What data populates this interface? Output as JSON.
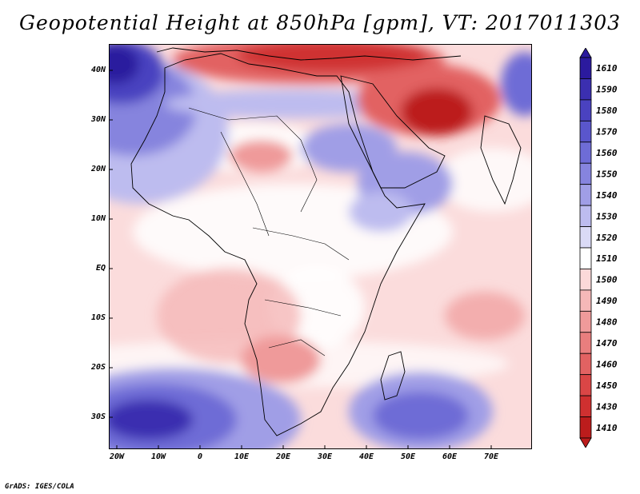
{
  "title": "Geopotential Height at 850hPa [gpm], VT: 2017011303",
  "credit": "GrADS: IGES/COLA",
  "map": {
    "lat_labels": [
      "40N",
      "30N",
      "20N",
      "10N",
      "EQ",
      "10S",
      "20S",
      "30S"
    ],
    "lon_labels": [
      "20W",
      "10W",
      "0",
      "10E",
      "20E",
      "30E",
      "40E",
      "50E",
      "60E",
      "70E"
    ],
    "extent": {
      "lon_min": -22,
      "lon_max": 80,
      "lat_min": -37,
      "lat_max": 45
    }
  },
  "colorbar": {
    "labels": [
      "1610",
      "1590",
      "1580",
      "1570",
      "1560",
      "1550",
      "1540",
      "1530",
      "1520",
      "1510",
      "1500",
      "1490",
      "1480",
      "1470",
      "1460",
      "1450",
      "1430",
      "1410"
    ],
    "colors": [
      "#2b1a9e",
      "#3b2fb0",
      "#4a42c0",
      "#5a56cc",
      "#6e6cd6",
      "#8684de",
      "#a09ee6",
      "#bdbcef",
      "#dadaf6",
      "#ffffff",
      "#fbd9d9",
      "#f5b8b8",
      "#ef9a9a",
      "#e97e7e",
      "#e26262",
      "#da4646",
      "#cf3030",
      "#bc1c1c"
    ]
  },
  "features": {
    "high_centers": [
      "North Atlantic high",
      "South Atlantic high",
      "South Indian Ocean high",
      "Tibetan high"
    ],
    "low_centers": [
      "Arabian low",
      "Mediterranean trough",
      "Sahara low",
      "Kalahari low",
      "Madagascar channel low"
    ]
  }
}
